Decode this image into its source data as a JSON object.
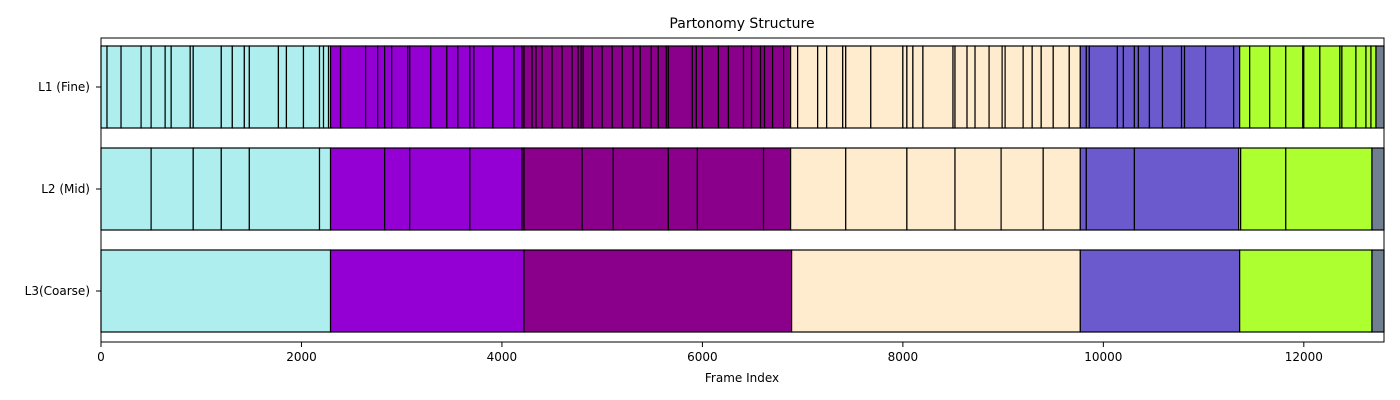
{
  "chart_data": {
    "type": "bar",
    "orientation": "horizontal-segments",
    "title": "Partonomy Structure",
    "xlabel": "Frame Index",
    "xlim": [
      0,
      12800
    ],
    "xticks": [
      0,
      2000,
      4000,
      6000,
      8000,
      10000,
      12000
    ],
    "rows": [
      {
        "label": "L1 (Fine)",
        "segments": [
          {
            "start": 0,
            "end": 60,
            "color": "#afeeee"
          },
          {
            "start": 60,
            "end": 200,
            "color": "#afeeee"
          },
          {
            "start": 200,
            "end": 400,
            "color": "#afeeee"
          },
          {
            "start": 400,
            "end": 500,
            "color": "#afeeee"
          },
          {
            "start": 500,
            "end": 640,
            "color": "#afeeee"
          },
          {
            "start": 640,
            "end": 700,
            "color": "#afeeee"
          },
          {
            "start": 700,
            "end": 890,
            "color": "#afeeee"
          },
          {
            "start": 890,
            "end": 920,
            "color": "#afeeee"
          },
          {
            "start": 920,
            "end": 1200,
            "color": "#afeeee"
          },
          {
            "start": 1200,
            "end": 1310,
            "color": "#afeeee"
          },
          {
            "start": 1310,
            "end": 1430,
            "color": "#afeeee"
          },
          {
            "start": 1430,
            "end": 1480,
            "color": "#afeeee"
          },
          {
            "start": 1480,
            "end": 1770,
            "color": "#afeeee"
          },
          {
            "start": 1770,
            "end": 1850,
            "color": "#afeeee"
          },
          {
            "start": 1850,
            "end": 2020,
            "color": "#afeeee"
          },
          {
            "start": 2020,
            "end": 2180,
            "color": "#afeeee"
          },
          {
            "start": 2180,
            "end": 2220,
            "color": "#afeeee"
          },
          {
            "start": 2220,
            "end": 2270,
            "color": "#afeeee"
          },
          {
            "start": 2270,
            "end": 2290,
            "color": "#afeeee"
          },
          {
            "start": 2290,
            "end": 2390,
            "color": "#9400d3"
          },
          {
            "start": 2390,
            "end": 2640,
            "color": "#9400d3"
          },
          {
            "start": 2640,
            "end": 2760,
            "color": "#9400d3"
          },
          {
            "start": 2760,
            "end": 2830,
            "color": "#9400d3"
          },
          {
            "start": 2830,
            "end": 2900,
            "color": "#9400d3"
          },
          {
            "start": 2900,
            "end": 3060,
            "color": "#9400d3"
          },
          {
            "start": 3060,
            "end": 3080,
            "color": "#9400d3"
          },
          {
            "start": 3080,
            "end": 3290,
            "color": "#9400d3"
          },
          {
            "start": 3290,
            "end": 3450,
            "color": "#9400d3"
          },
          {
            "start": 3450,
            "end": 3560,
            "color": "#9400d3"
          },
          {
            "start": 3560,
            "end": 3680,
            "color": "#9400d3"
          },
          {
            "start": 3680,
            "end": 3720,
            "color": "#9400d3"
          },
          {
            "start": 3720,
            "end": 3910,
            "color": "#9400d3"
          },
          {
            "start": 3910,
            "end": 4120,
            "color": "#9400d3"
          },
          {
            "start": 4120,
            "end": 4200,
            "color": "#9400d3"
          },
          {
            "start": 4200,
            "end": 4220,
            "color": "#8b008b"
          },
          {
            "start": 4220,
            "end": 4300,
            "color": "#8b008b"
          },
          {
            "start": 4300,
            "end": 4340,
            "color": "#8b008b"
          },
          {
            "start": 4340,
            "end": 4400,
            "color": "#8b008b"
          },
          {
            "start": 4400,
            "end": 4500,
            "color": "#8b008b"
          },
          {
            "start": 4500,
            "end": 4600,
            "color": "#8b008b"
          },
          {
            "start": 4600,
            "end": 4700,
            "color": "#8b008b"
          },
          {
            "start": 4700,
            "end": 4760,
            "color": "#8b008b"
          },
          {
            "start": 4760,
            "end": 4790,
            "color": "#8b008b"
          },
          {
            "start": 4790,
            "end": 4810,
            "color": "#8b008b"
          },
          {
            "start": 4810,
            "end": 4900,
            "color": "#8b008b"
          },
          {
            "start": 4900,
            "end": 5000,
            "color": "#8b008b"
          },
          {
            "start": 5000,
            "end": 5100,
            "color": "#8b008b"
          },
          {
            "start": 5100,
            "end": 5200,
            "color": "#8b008b"
          },
          {
            "start": 5200,
            "end": 5310,
            "color": "#8b008b"
          },
          {
            "start": 5310,
            "end": 5380,
            "color": "#8b008b"
          },
          {
            "start": 5380,
            "end": 5490,
            "color": "#8b008b"
          },
          {
            "start": 5490,
            "end": 5560,
            "color": "#8b008b"
          },
          {
            "start": 5560,
            "end": 5640,
            "color": "#8b008b"
          },
          {
            "start": 5640,
            "end": 5660,
            "color": "#8b008b"
          },
          {
            "start": 5660,
            "end": 5900,
            "color": "#8b008b"
          },
          {
            "start": 5900,
            "end": 5940,
            "color": "#8b008b"
          },
          {
            "start": 5940,
            "end": 6000,
            "color": "#8b008b"
          },
          {
            "start": 6000,
            "end": 6160,
            "color": "#8b008b"
          },
          {
            "start": 6160,
            "end": 6260,
            "color": "#8b008b"
          },
          {
            "start": 6260,
            "end": 6410,
            "color": "#8b008b"
          },
          {
            "start": 6410,
            "end": 6490,
            "color": "#8b008b"
          },
          {
            "start": 6490,
            "end": 6580,
            "color": "#8b008b"
          },
          {
            "start": 6580,
            "end": 6620,
            "color": "#8b008b"
          },
          {
            "start": 6620,
            "end": 6700,
            "color": "#8b008b"
          },
          {
            "start": 6700,
            "end": 6810,
            "color": "#8b008b"
          },
          {
            "start": 6810,
            "end": 6880,
            "color": "#8b008b"
          },
          {
            "start": 6880,
            "end": 6950,
            "color": "#ffebcd"
          },
          {
            "start": 6950,
            "end": 7150,
            "color": "#ffebcd"
          },
          {
            "start": 7150,
            "end": 7240,
            "color": "#ffebcd"
          },
          {
            "start": 7240,
            "end": 7400,
            "color": "#ffebcd"
          },
          {
            "start": 7400,
            "end": 7430,
            "color": "#ffebcd"
          },
          {
            "start": 7430,
            "end": 7680,
            "color": "#ffebcd"
          },
          {
            "start": 7680,
            "end": 8000,
            "color": "#ffebcd"
          },
          {
            "start": 8000,
            "end": 8040,
            "color": "#ffebcd"
          },
          {
            "start": 8040,
            "end": 8100,
            "color": "#ffebcd"
          },
          {
            "start": 8100,
            "end": 8200,
            "color": "#ffebcd"
          },
          {
            "start": 8200,
            "end": 8500,
            "color": "#ffebcd"
          },
          {
            "start": 8500,
            "end": 8520,
            "color": "#ffebcd"
          },
          {
            "start": 8520,
            "end": 8640,
            "color": "#ffebcd"
          },
          {
            "start": 8640,
            "end": 8720,
            "color": "#ffebcd"
          },
          {
            "start": 8720,
            "end": 8860,
            "color": "#ffebcd"
          },
          {
            "start": 8860,
            "end": 8990,
            "color": "#ffebcd"
          },
          {
            "start": 8990,
            "end": 9020,
            "color": "#ffebcd"
          },
          {
            "start": 9020,
            "end": 9200,
            "color": "#ffebcd"
          },
          {
            "start": 9200,
            "end": 9290,
            "color": "#ffebcd"
          },
          {
            "start": 9290,
            "end": 9380,
            "color": "#ffebcd"
          },
          {
            "start": 9380,
            "end": 9500,
            "color": "#ffebcd"
          },
          {
            "start": 9500,
            "end": 9660,
            "color": "#ffebcd"
          },
          {
            "start": 9660,
            "end": 9770,
            "color": "#ffebcd"
          },
          {
            "start": 9770,
            "end": 9830,
            "color": "#6a5acd"
          },
          {
            "start": 9830,
            "end": 9860,
            "color": "#6a5acd"
          },
          {
            "start": 9860,
            "end": 10140,
            "color": "#6a5acd"
          },
          {
            "start": 10140,
            "end": 10200,
            "color": "#6a5acd"
          },
          {
            "start": 10200,
            "end": 10310,
            "color": "#6a5acd"
          },
          {
            "start": 10310,
            "end": 10350,
            "color": "#6a5acd"
          },
          {
            "start": 10350,
            "end": 10460,
            "color": "#6a5acd"
          },
          {
            "start": 10460,
            "end": 10590,
            "color": "#6a5acd"
          },
          {
            "start": 10590,
            "end": 10780,
            "color": "#6a5acd"
          },
          {
            "start": 10780,
            "end": 10810,
            "color": "#6a5acd"
          },
          {
            "start": 10810,
            "end": 11020,
            "color": "#6a5acd"
          },
          {
            "start": 11020,
            "end": 11300,
            "color": "#6a5acd"
          },
          {
            "start": 11300,
            "end": 11360,
            "color": "#6a5acd"
          },
          {
            "start": 11360,
            "end": 11460,
            "color": "#adff2f"
          },
          {
            "start": 11460,
            "end": 11660,
            "color": "#adff2f"
          },
          {
            "start": 11660,
            "end": 11820,
            "color": "#adff2f"
          },
          {
            "start": 11820,
            "end": 11990,
            "color": "#adff2f"
          },
          {
            "start": 11990,
            "end": 12000,
            "color": "#adff2f"
          },
          {
            "start": 12000,
            "end": 12160,
            "color": "#adff2f"
          },
          {
            "start": 12160,
            "end": 12360,
            "color": "#adff2f"
          },
          {
            "start": 12360,
            "end": 12380,
            "color": "#adff2f"
          },
          {
            "start": 12380,
            "end": 12520,
            "color": "#adff2f"
          },
          {
            "start": 12520,
            "end": 12620,
            "color": "#adff2f"
          },
          {
            "start": 12620,
            "end": 12670,
            "color": "#adff2f"
          },
          {
            "start": 12670,
            "end": 12720,
            "color": "#adff2f"
          },
          {
            "start": 12720,
            "end": 12800,
            "color": "#708090"
          }
        ]
      },
      {
        "label": "L2 (Mid)",
        "segments": [
          {
            "start": 0,
            "end": 500,
            "color": "#afeeee"
          },
          {
            "start": 500,
            "end": 920,
            "color": "#afeeee"
          },
          {
            "start": 920,
            "end": 1200,
            "color": "#afeeee"
          },
          {
            "start": 1200,
            "end": 1480,
            "color": "#afeeee"
          },
          {
            "start": 1480,
            "end": 2180,
            "color": "#afeeee"
          },
          {
            "start": 2180,
            "end": 2290,
            "color": "#afeeee"
          },
          {
            "start": 2290,
            "end": 2830,
            "color": "#9400d3"
          },
          {
            "start": 2830,
            "end": 3080,
            "color": "#9400d3"
          },
          {
            "start": 3080,
            "end": 3680,
            "color": "#9400d3"
          },
          {
            "start": 3680,
            "end": 4200,
            "color": "#9400d3"
          },
          {
            "start": 4200,
            "end": 4220,
            "color": "#8b008b"
          },
          {
            "start": 4220,
            "end": 4800,
            "color": "#8b008b"
          },
          {
            "start": 4800,
            "end": 5110,
            "color": "#8b008b"
          },
          {
            "start": 5110,
            "end": 5660,
            "color": "#8b008b"
          },
          {
            "start": 5660,
            "end": 5950,
            "color": "#8b008b"
          },
          {
            "start": 5950,
            "end": 6610,
            "color": "#8b008b"
          },
          {
            "start": 6610,
            "end": 6880,
            "color": "#8b008b"
          },
          {
            "start": 6880,
            "end": 7430,
            "color": "#ffebcd"
          },
          {
            "start": 7430,
            "end": 8040,
            "color": "#ffebcd"
          },
          {
            "start": 8040,
            "end": 8520,
            "color": "#ffebcd"
          },
          {
            "start": 8520,
            "end": 8980,
            "color": "#ffebcd"
          },
          {
            "start": 8980,
            "end": 9400,
            "color": "#ffebcd"
          },
          {
            "start": 9400,
            "end": 9770,
            "color": "#ffebcd"
          },
          {
            "start": 9770,
            "end": 9830,
            "color": "#6a5acd"
          },
          {
            "start": 9830,
            "end": 10310,
            "color": "#6a5acd"
          },
          {
            "start": 10310,
            "end": 11350,
            "color": "#6a5acd"
          },
          {
            "start": 11350,
            "end": 11370,
            "color": "#adff2f"
          },
          {
            "start": 11370,
            "end": 11820,
            "color": "#adff2f"
          },
          {
            "start": 11820,
            "end": 12680,
            "color": "#adff2f"
          },
          {
            "start": 12680,
            "end": 12800,
            "color": "#708090"
          }
        ]
      },
      {
        "label": "L3(Coarse)",
        "segments": [
          {
            "start": 0,
            "end": 2290,
            "color": "#afeeee"
          },
          {
            "start": 2290,
            "end": 4220,
            "color": "#9400d3"
          },
          {
            "start": 4220,
            "end": 6890,
            "color": "#8b008b"
          },
          {
            "start": 6890,
            "end": 9770,
            "color": "#ffebcd"
          },
          {
            "start": 9770,
            "end": 11360,
            "color": "#6a5acd"
          },
          {
            "start": 11360,
            "end": 12680,
            "color": "#adff2f"
          },
          {
            "start": 12680,
            "end": 12800,
            "color": "#708090"
          }
        ]
      }
    ],
    "grid": false,
    "legend": "none"
  }
}
